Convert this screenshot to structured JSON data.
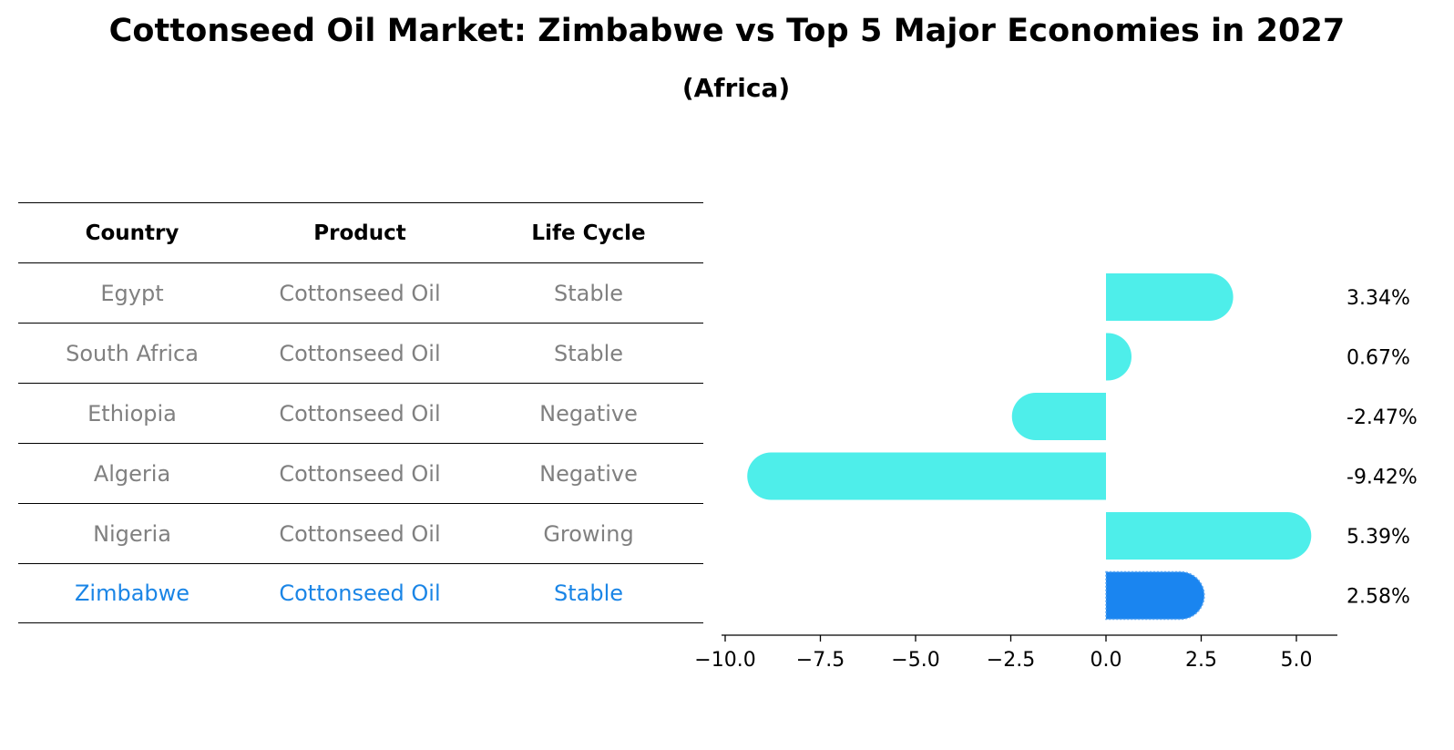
{
  "title": "Cottonseed Oil Market: Zimbabwe vs Top 5 Major Economies in 2027",
  "subtitle": "(Africa)",
  "table": {
    "headers": [
      "Country",
      "Product",
      "Life Cycle"
    ],
    "rows": [
      [
        "Egypt",
        "Cottonseed Oil",
        "Stable"
      ],
      [
        "South Africa",
        "Cottonseed Oil",
        "Stable"
      ],
      [
        "Ethiopia",
        "Cottonseed Oil",
        "Negative"
      ],
      [
        "Algeria",
        "Cottonseed Oil",
        "Negative"
      ],
      [
        "Nigeria",
        "Cottonseed Oil",
        "Growing"
      ],
      [
        "Zimbabwe",
        "Cottonseed Oil",
        "Stable"
      ]
    ],
    "highlight_row": 5
  },
  "chart_data": {
    "type": "bar",
    "orientation": "horizontal",
    "categories": [
      "Egypt",
      "South Africa",
      "Ethiopia",
      "Algeria",
      "Nigeria",
      "Zimbabwe"
    ],
    "values": [
      3.34,
      0.67,
      -2.47,
      -9.42,
      5.39,
      2.58
    ],
    "value_labels": [
      "3.34%",
      "0.67%",
      "-2.47%",
      "-9.42%",
      "5.39%",
      "2.58%"
    ],
    "xticks": [
      -10.0,
      -7.5,
      -5.0,
      -2.5,
      0.0,
      2.5,
      5.0
    ],
    "xtick_labels": [
      "−10.0",
      "−7.5",
      "−5.0",
      "−2.5",
      "0.0",
      "2.5",
      "5.0"
    ],
    "xlim": [
      -10.1,
      6.1
    ],
    "grid": false,
    "colors": {
      "default": "#4eeeea",
      "highlight": "#1a85f0",
      "text_muted": "#808080",
      "text_highlight": "#1a85e6"
    }
  }
}
